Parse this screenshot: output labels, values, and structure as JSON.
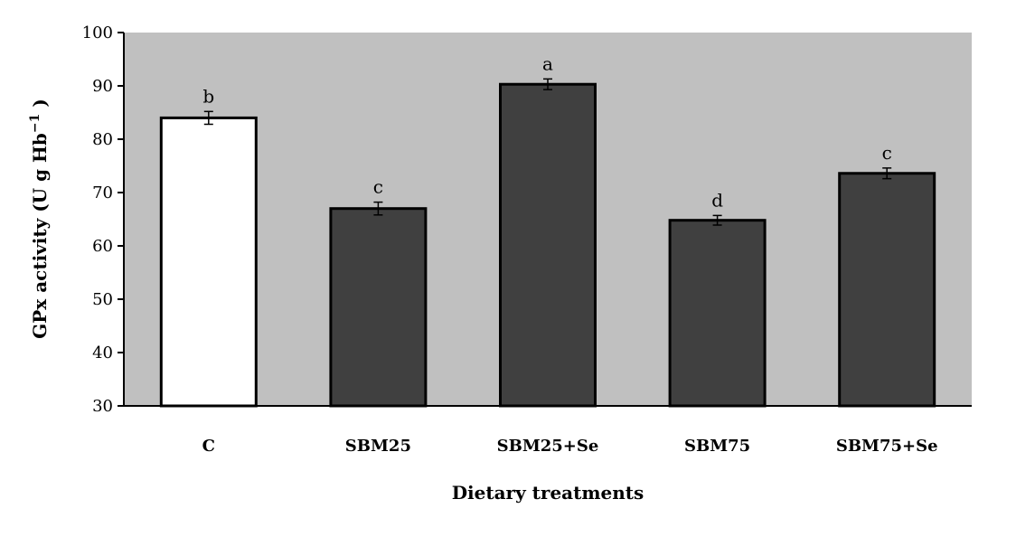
{
  "chart_data": {
    "type": "bar",
    "title": "",
    "xlabel": "Dietary treatments",
    "ylabel": "GPx activity (U g Hb",
    "ylabel_sup": "−1",
    "ylabel_close": " )",
    "ylim": [
      30,
      100
    ],
    "yticks": [
      "30",
      "40",
      "50",
      "60",
      "70",
      "80",
      "90",
      "100"
    ],
    "grid": false,
    "categories": [
      "C",
      "SBM25",
      "SBM25+Se",
      "SBM75",
      "SBM75+Se"
    ],
    "values": [
      84,
      67,
      90.3,
      64.8,
      73.6
    ],
    "errors": [
      1.2,
      1.2,
      1.0,
      0.9,
      1.0
    ],
    "significance_letters": [
      "b",
      "c",
      "a",
      "d",
      "c"
    ],
    "colors": {
      "plot_background": "#c0c0c0",
      "bar_control": "#ffffff",
      "bar_treatment": "#404040",
      "bar_outline": "#000000"
    }
  }
}
